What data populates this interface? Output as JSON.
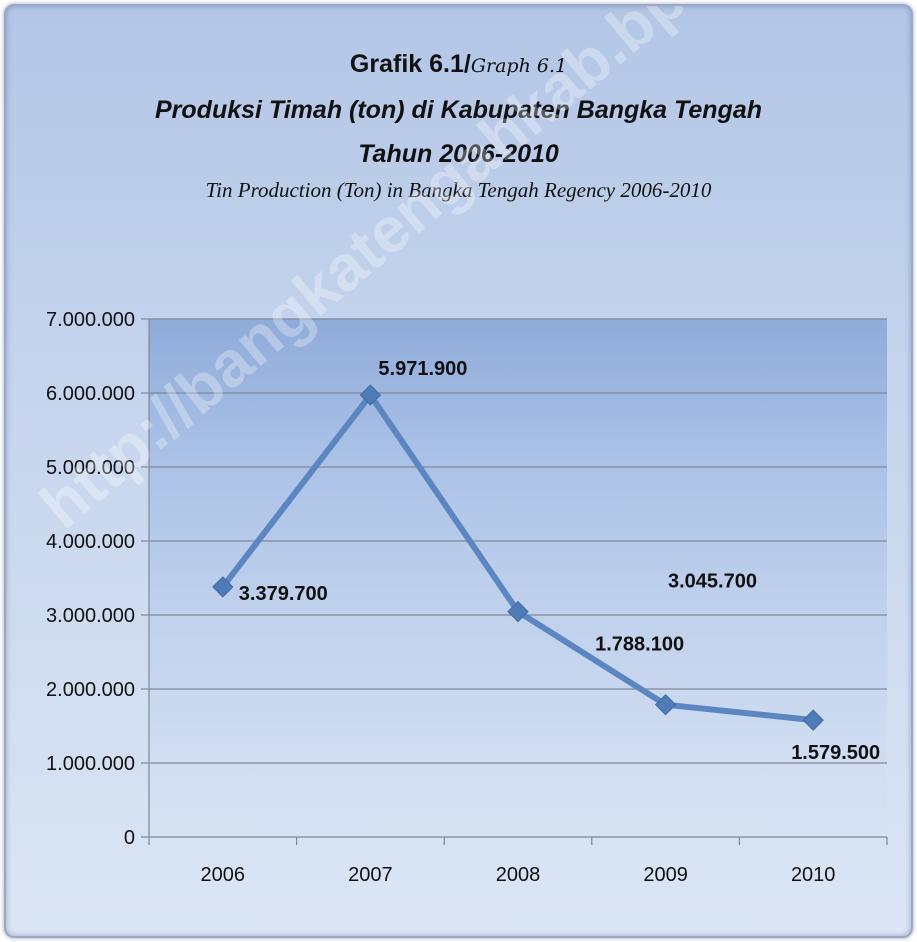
{
  "titles": {
    "line1_id": "Grafik 6.1/",
    "line1_en": "Graph 6.1",
    "line2": "Produksi Timah (ton)  di Kabupaten Bangka Tengah",
    "line3": "Tahun 2006-2010",
    "line4": "Tin Production  (Ton) in Bangka Tengah Regency  2006-2010"
  },
  "watermark": "http://bangkatengahkab.bps.go.id",
  "colors": {
    "series": "#5b86c1",
    "marker": "#4f7bb6",
    "grid": "#7f8797"
  },
  "chart_data": {
    "type": "line",
    "x": [
      "2006",
      "2007",
      "2008",
      "2009",
      "2010"
    ],
    "series": [
      {
        "values": [
          3379700,
          5971900,
          3045700,
          1788100,
          1579500
        ],
        "labels": [
          "3.379.700",
          "5.971.900",
          "3.045.700",
          "1.788.100",
          "1.579.500"
        ]
      }
    ],
    "ylim": [
      0,
      7000000
    ],
    "yticks": [
      0,
      1000000,
      2000000,
      3000000,
      4000000,
      5000000,
      6000000,
      7000000
    ],
    "ytick_labels": [
      "0",
      "1.000.000",
      "2.000.000",
      "3.000.000",
      "4.000.000",
      "5.000.000",
      "6.000.000",
      "7.000.000"
    ],
    "grid": true,
    "legend": "none",
    "marker": "diamond"
  }
}
